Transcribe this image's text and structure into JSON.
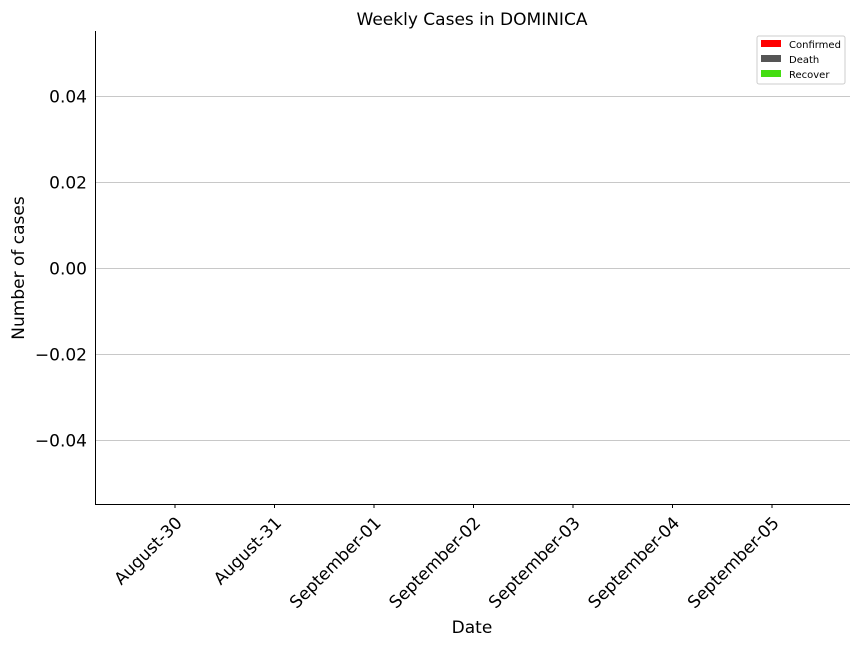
{
  "chart_data": {
    "type": "bar",
    "title": "Weekly Cases in DOMINICA",
    "xlabel": "Date",
    "ylabel": "Number of cases",
    "categories": [
      "August-30",
      "August-31",
      "September-01",
      "September-02",
      "September-03",
      "September-04",
      "September-05"
    ],
    "series": [
      {
        "name": "Confirmed",
        "color": "#ff0000",
        "values": [
          0,
          0,
          0,
          0,
          0,
          0,
          0
        ]
      },
      {
        "name": "Death",
        "color": "#555555",
        "values": [
          0,
          0,
          0,
          0,
          0,
          0,
          0
        ]
      },
      {
        "name": "Recover",
        "color": "#44dd11",
        "values": [
          0,
          0,
          0,
          0,
          0,
          0,
          0
        ]
      }
    ],
    "ylim": [
      -0.055,
      0.055
    ],
    "yticks": [
      "0.04",
      "0.02",
      "0.00",
      "−0.02",
      "−0.04"
    ],
    "ytick_values": [
      0.04,
      0.02,
      0.0,
      -0.02,
      -0.04
    ],
    "grid": "horizontal",
    "legend_position": "top-right"
  }
}
